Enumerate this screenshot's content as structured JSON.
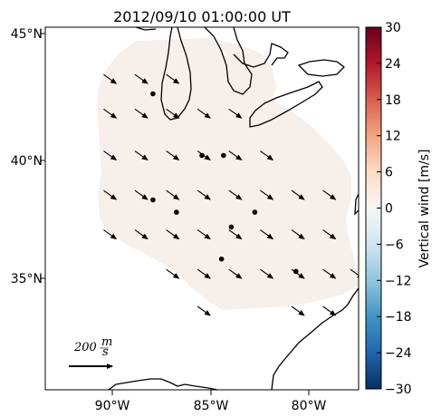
{
  "title": "2012/09/10 01:00:00 UT",
  "lon_ticks": [
    "90°W",
    "85°W",
    "80°W"
  ],
  "lat_ticks": [
    "45°N",
    "40°N",
    "35°N"
  ],
  "colorbar": {
    "label": "Vertical wind [m/s]",
    "ticks": [
      "30",
      "24",
      "18",
      "12",
      "6",
      "0",
      "−6",
      "−12",
      "−18",
      "−24",
      "−30"
    ],
    "range": [
      -30,
      30
    ],
    "colormap": "RdBu_r"
  },
  "reference_vector": {
    "label_number": "200",
    "label_unit_top": "m",
    "label_unit_bottom": "s"
  },
  "colors": {
    "field_fill": "#f7efea",
    "coastline": "#000000",
    "arrow": "#000000"
  },
  "map_extent": {
    "lon": [
      -93.5,
      -77.5
    ],
    "lat": [
      30.5,
      45.2
    ]
  },
  "wind_vector": {
    "u": 0.7,
    "v": -0.5
  },
  "vectors": [
    [
      -90.2,
      43.1
    ],
    [
      -88.6,
      43.1
    ],
    [
      -87.0,
      43.1
    ],
    [
      -90.2,
      41.7
    ],
    [
      -88.6,
      41.7
    ],
    [
      -87.0,
      41.7
    ],
    [
      -85.4,
      41.7
    ],
    [
      -83.8,
      41.7
    ],
    [
      -90.2,
      40.0
    ],
    [
      -88.6,
      40.0
    ],
    [
      -87.0,
      40.0
    ],
    [
      -85.4,
      40.0
    ],
    [
      -83.8,
      40.0
    ],
    [
      -82.2,
      40.0
    ],
    [
      -90.2,
      38.4
    ],
    [
      -88.6,
      38.4
    ],
    [
      -87.0,
      38.4
    ],
    [
      -85.4,
      38.4
    ],
    [
      -83.8,
      38.4
    ],
    [
      -82.2,
      38.4
    ],
    [
      -80.6,
      38.4
    ],
    [
      -79.0,
      38.4
    ],
    [
      -90.2,
      36.8
    ],
    [
      -88.6,
      36.8
    ],
    [
      -87.0,
      36.8
    ],
    [
      -85.4,
      36.8
    ],
    [
      -83.8,
      36.8
    ],
    [
      -82.2,
      36.8
    ],
    [
      -80.6,
      36.8
    ],
    [
      -79.0,
      36.8
    ],
    [
      -87.0,
      35.2
    ],
    [
      -85.4,
      35.2
    ],
    [
      -83.8,
      35.2
    ],
    [
      -82.2,
      35.2
    ],
    [
      -80.6,
      35.2
    ],
    [
      -79.0,
      35.2
    ],
    [
      -77.6,
      35.2
    ],
    [
      -85.4,
      33.7
    ],
    [
      -80.6,
      33.7
    ],
    [
      -79.0,
      33.7
    ]
  ],
  "calm_points": [
    [
      -88.0,
      42.5
    ],
    [
      -85.5,
      40.0
    ],
    [
      -84.4,
      40.0
    ],
    [
      -88.0,
      38.2
    ],
    [
      -86.8,
      37.7
    ],
    [
      -82.8,
      37.7
    ],
    [
      -84.0,
      37.1
    ],
    [
      -84.5,
      35.8
    ],
    [
      -80.7,
      35.3
    ]
  ]
}
